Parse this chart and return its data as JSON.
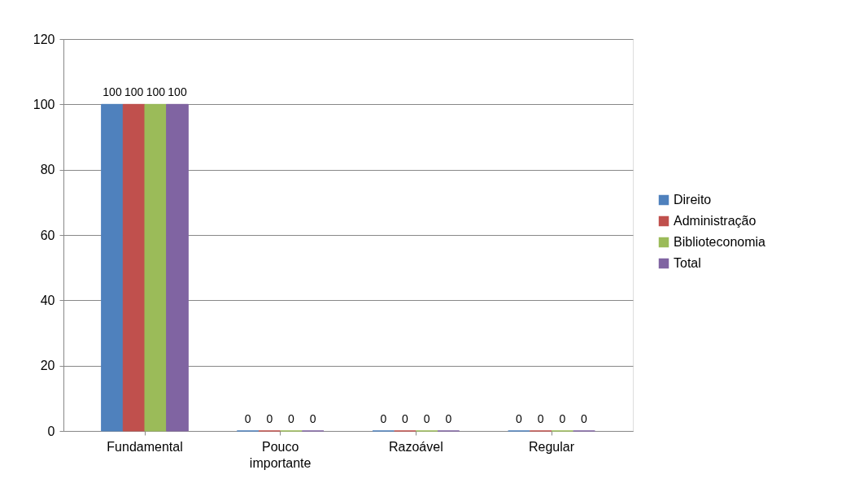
{
  "chart_data": {
    "type": "bar",
    "categories": [
      "Fundamental",
      "Pouco importante",
      "Razoável",
      "Regular"
    ],
    "series": [
      {
        "name": "Direito",
        "color": "#4f81bd",
        "values": [
          100,
          0,
          0,
          0
        ]
      },
      {
        "name": "Administração",
        "color": "#c0504d",
        "values": [
          100,
          0,
          0,
          0
        ]
      },
      {
        "name": "Biblioteconomia",
        "color": "#9bbb59",
        "values": [
          100,
          0,
          0,
          0
        ]
      },
      {
        "name": "Total",
        "color": "#8064a2",
        "values": [
          100,
          0,
          0,
          0
        ]
      }
    ],
    "ylim": [
      0,
      120
    ],
    "yticks": [
      0,
      20,
      40,
      60,
      80,
      100,
      120
    ],
    "grid": "y",
    "legend": "right",
    "data_labels": true
  }
}
